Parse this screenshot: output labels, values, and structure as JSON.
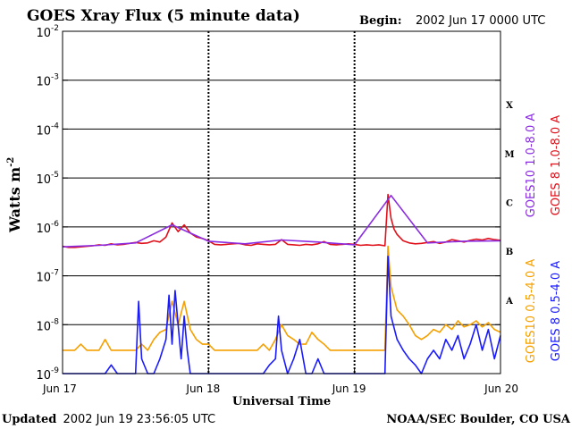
{
  "header": {
    "title": "GOES Xray Flux (5 minute data)",
    "begin_label": "Begin:",
    "begin_value": "2002 Jun 17 0000 UTC"
  },
  "footer": {
    "updated_label": "Updated",
    "updated_value": "2002 Jun 19 23:56:05 UTC",
    "source": "NOAA/SEC Boulder, CO USA"
  },
  "colors": {
    "goes10_long": "#8a2be2",
    "goes8_long": "#e0101a",
    "goes10_short": "#f5a000",
    "goes8_short": "#1a1aff",
    "axis": "#000000"
  },
  "chart_data": {
    "type": "line",
    "title": "GOES Xray Flux (5 minute data)",
    "xlabel": "Universal Time",
    "ylabel": "Watts m",
    "ylabel_exponent": "-2",
    "yscale": "log",
    "ylim": [
      1e-09,
      0.01
    ],
    "y_ticks": [
      {
        "base": "10",
        "exp": "-2",
        "value": 0.01
      },
      {
        "base": "10",
        "exp": "-3",
        "value": 0.001
      },
      {
        "base": "10",
        "exp": "-4",
        "value": 0.0001
      },
      {
        "base": "10",
        "exp": "-5",
        "value": 1e-05
      },
      {
        "base": "10",
        "exp": "-6",
        "value": 1e-06
      },
      {
        "base": "10",
        "exp": "-7",
        "value": 1e-07
      },
      {
        "base": "10",
        "exp": "-8",
        "value": 1e-08
      },
      {
        "base": "10",
        "exp": "-9",
        "value": 1e-09
      }
    ],
    "xlim": [
      0,
      72
    ],
    "x_unit": "hours since Jun 17 0000 UTC",
    "x_ticks": [
      {
        "label": "Jun 17",
        "value": 0
      },
      {
        "label": "Jun 18",
        "value": 24
      },
      {
        "label": "Jun 19",
        "value": 48
      },
      {
        "label": "Jun 20",
        "value": 72
      }
    ],
    "flare_classes": [
      {
        "label": "X",
        "low": 0.0001,
        "high": 0.001
      },
      {
        "label": "M",
        "low": 1e-05,
        "high": 0.0001
      },
      {
        "label": "C",
        "low": 1e-06,
        "high": 1e-05
      },
      {
        "label": "B",
        "low": 1e-07,
        "high": 1e-06
      },
      {
        "label": "A",
        "low": 1e-08,
        "high": 1e-07
      }
    ],
    "legend_right_outer": [
      {
        "text": "GOES 8 1.0-8.0 A",
        "color": "#e0101a"
      },
      {
        "text": "GOES 8 0.5-4.0 A",
        "color": "#1a1aff"
      }
    ],
    "legend_right_inner": [
      {
        "text": "GOES10 1.0-8.0 A",
        "color": "#8a2be2"
      },
      {
        "text": "GOES10 0.5-4.0 A",
        "color": "#f5a000"
      }
    ],
    "series": [
      {
        "name": "GOES 8 1.0-8.0 A",
        "color": "#e0101a",
        "x": [
          0,
          1,
          2,
          3,
          4,
          5,
          6,
          7,
          8,
          9,
          10,
          11,
          12,
          13,
          14,
          15,
          16,
          17,
          18,
          19,
          20,
          21,
          22,
          23,
          24,
          25,
          26,
          27,
          28,
          29,
          30,
          31,
          32,
          33,
          34,
          35,
          36,
          37,
          38,
          39,
          40,
          41,
          42,
          43,
          44,
          45,
          46,
          47,
          48,
          49,
          50,
          51,
          52,
          53,
          53.5,
          54,
          54.5,
          55,
          56,
          57,
          58,
          59,
          60,
          61,
          62,
          63,
          64,
          65,
          66,
          67,
          68,
          69,
          70,
          71,
          72
        ],
        "values": [
          4e-07,
          3.8e-07,
          3.8e-07,
          3.9e-07,
          4e-07,
          4.1e-07,
          4.3e-07,
          4.2e-07,
          4.5e-07,
          4.3e-07,
          4.4e-07,
          4.6e-07,
          4.8e-07,
          4.6e-07,
          4.7e-07,
          5.2e-07,
          4.9e-07,
          6.2e-07,
          1.2e-06,
          8e-07,
          1.1e-06,
          7.5e-07,
          6.2e-07,
          5.8e-07,
          5.2e-07,
          4.4e-07,
          4.3e-07,
          4.4e-07,
          4.5e-07,
          4.6e-07,
          4.3e-07,
          4.2e-07,
          4.5e-07,
          4.4e-07,
          4.3e-07,
          4.4e-07,
          5.5e-07,
          4.4e-07,
          4.3e-07,
          4.2e-07,
          4.4e-07,
          4.3e-07,
          4.5e-07,
          5e-07,
          4.4e-07,
          4.3e-07,
          4.4e-07,
          4.5e-07,
          4.4e-07,
          4.2e-07,
          4.3e-07,
          4.2e-07,
          4.3e-07,
          4.1e-07,
          4.6e-06,
          1.5e-06,
          9e-07,
          7e-07,
          5.2e-07,
          4.7e-07,
          4.5e-07,
          4.6e-07,
          4.8e-07,
          5e-07,
          4.6e-07,
          4.9e-07,
          5.5e-07,
          5.2e-07,
          4.9e-07,
          5.3e-07,
          5.6e-07,
          5.4e-07,
          5.8e-07,
          5.5e-07,
          5.3e-07
        ]
      },
      {
        "name": "GOES10 1.0-8.0 A",
        "color": "#8a2be2",
        "x": [
          0,
          6,
          12,
          18,
          24,
          30,
          36,
          42,
          48,
          54,
          60,
          66,
          72
        ],
        "values": [
          3.9e-07,
          4.2e-07,
          4.7e-07,
          1.1e-06,
          5.1e-07,
          4.5e-07,
          5.4e-07,
          4.9e-07,
          4.3e-07,
          4.4e-06,
          4.7e-07,
          5.1e-07,
          5.2e-07
        ]
      },
      {
        "name": "GOES10 0.5-4.0 A",
        "color": "#f5a000",
        "x": [
          0,
          1,
          2,
          3,
          4,
          5,
          6,
          7,
          8,
          9,
          10,
          11,
          12,
          13,
          14,
          15,
          16,
          17,
          18,
          19,
          20,
          21,
          22,
          23,
          24,
          25,
          26,
          27,
          28,
          29,
          30,
          31,
          32,
          33,
          34,
          35,
          36,
          37,
          38,
          39,
          40,
          41,
          42,
          43,
          44,
          45,
          46,
          47,
          48,
          49,
          50,
          51,
          52,
          53,
          53.5,
          54,
          55,
          56,
          57,
          58,
          59,
          60,
          61,
          62,
          63,
          64,
          65,
          66,
          67,
          68,
          69,
          70,
          71,
          72
        ],
        "values": [
          3e-09,
          3e-09,
          3e-09,
          4e-09,
          3e-09,
          3e-09,
          3e-09,
          5e-09,
          3e-09,
          3e-09,
          3e-09,
          3e-09,
          3e-09,
          4e-09,
          3e-09,
          5e-09,
          7e-09,
          8e-09,
          3e-08,
          1e-08,
          3e-08,
          8e-09,
          5e-09,
          4e-09,
          4e-09,
          3e-09,
          3e-09,
          3e-09,
          3e-09,
          3e-09,
          3e-09,
          3e-09,
          3e-09,
          4e-09,
          3e-09,
          5e-09,
          1e-08,
          6e-09,
          5e-09,
          4e-09,
          4e-09,
          7e-09,
          5e-09,
          4e-09,
          3e-09,
          3e-09,
          3e-09,
          3e-09,
          3e-09,
          3e-09,
          3e-09,
          3e-09,
          3e-09,
          3e-09,
          4e-07,
          6e-08,
          2e-08,
          1.5e-08,
          1e-08,
          6e-09,
          5e-09,
          6e-09,
          8e-09,
          7e-09,
          1e-08,
          8e-09,
          1.2e-08,
          9e-09,
          1e-08,
          1.2e-08,
          9e-09,
          1.1e-08,
          8e-09,
          7e-09
        ]
      },
      {
        "name": "GOES 8 0.5-4.0 A",
        "color": "#1a1aff",
        "x": [
          0,
          1,
          2,
          3,
          4,
          5,
          6,
          7,
          8,
          9,
          10,
          11,
          12,
          12.5,
          13,
          14,
          15,
          16,
          17,
          17.5,
          18,
          18.5,
          19,
          19.5,
          20,
          20.5,
          21,
          22,
          23,
          24,
          25,
          26,
          27,
          28,
          29,
          30,
          31,
          32,
          33,
          34,
          35,
          35.5,
          36,
          37,
          38,
          39,
          40,
          41,
          42,
          43,
          44,
          45,
          46,
          47,
          48,
          49,
          50,
          51,
          52,
          53,
          53.5,
          54,
          55,
          56,
          57,
          58,
          59,
          60,
          61,
          62,
          63,
          64,
          65,
          66,
          67,
          68,
          69,
          70,
          71,
          72
        ],
        "values": [
          1e-09,
          1e-09,
          1e-09,
          1e-09,
          1e-09,
          1e-09,
          1e-09,
          1e-09,
          1.5e-09,
          1e-09,
          1e-09,
          1e-09,
          1e-09,
          3e-08,
          2e-09,
          1e-09,
          1e-09,
          2e-09,
          5e-09,
          4e-08,
          4e-09,
          5e-08,
          1e-08,
          2e-09,
          1.5e-08,
          3e-09,
          1e-09,
          1e-09,
          1e-09,
          1e-09,
          1e-09,
          1e-09,
          1e-09,
          1e-09,
          1e-09,
          1e-09,
          1e-09,
          1e-09,
          1e-09,
          1.5e-09,
          2e-09,
          1.5e-08,
          3e-09,
          1e-09,
          2e-09,
          5e-09,
          1e-09,
          1e-09,
          2e-09,
          1e-09,
          1e-09,
          1e-09,
          1e-09,
          1e-09,
          1e-09,
          1e-09,
          1e-09,
          1e-09,
          1e-09,
          1e-09,
          2.5e-07,
          1.5e-08,
          5e-09,
          3e-09,
          2e-09,
          1.5e-09,
          1e-09,
          2e-09,
          3e-09,
          2e-09,
          5e-09,
          3e-09,
          6e-09,
          2e-09,
          4e-09,
          1e-08,
          3e-09,
          8e-09,
          2e-09,
          6e-09
        ]
      }
    ]
  }
}
